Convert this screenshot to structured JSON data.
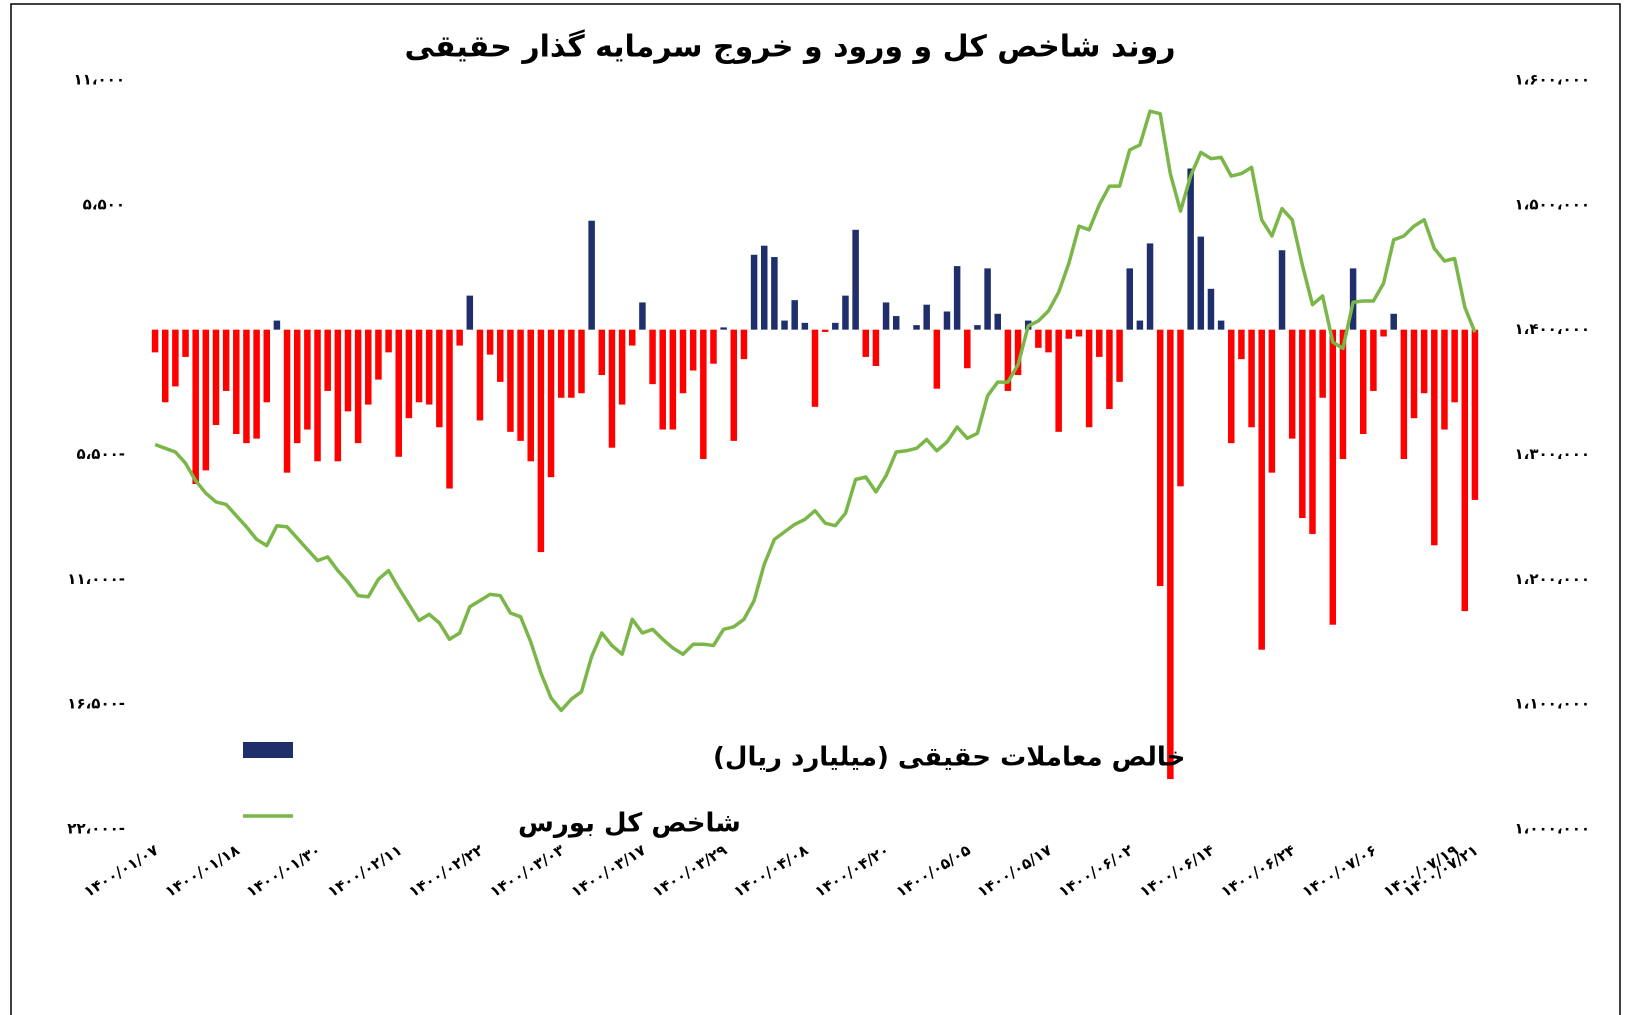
{
  "chart_data": {
    "type": "bar-line",
    "title": "روند شاخص کل و ورود و خروج سرمایه گذار حقیقی",
    "categories": [
      "۱۴۰۰/۰۱/۰۷",
      null,
      null,
      null,
      null,
      null,
      null,
      null,
      "۱۴۰۰/۰۱/۱۸",
      null,
      null,
      null,
      null,
      null,
      null,
      null,
      "۱۴۰۰/۰۱/۳۰",
      null,
      null,
      null,
      null,
      null,
      null,
      null,
      "۱۴۰۰/۰۲/۱۱",
      null,
      null,
      null,
      null,
      null,
      null,
      null,
      "۱۴۰۰/۰۲/۲۲",
      null,
      null,
      null,
      null,
      null,
      null,
      null,
      "۱۴۰۰/۰۳/۰۳",
      null,
      null,
      null,
      null,
      null,
      null,
      null,
      "۱۴۰۰/۰۳/۱۷",
      null,
      null,
      null,
      null,
      null,
      null,
      null,
      "۱۴۰۰/۰۳/۲۹",
      null,
      null,
      null,
      null,
      null,
      null,
      null,
      "۱۴۰۰/۰۴/۰۸",
      null,
      null,
      null,
      null,
      null,
      null,
      null,
      "۱۴۰۰/۰۴/۲۰",
      null,
      null,
      null,
      null,
      null,
      null,
      null,
      "۱۴۰۰/۰۵/۰۵",
      null,
      null,
      null,
      null,
      null,
      null,
      null,
      "۱۴۰۰/۰۵/۱۷",
      null,
      null,
      null,
      null,
      null,
      null,
      null,
      "۱۴۰۰/۰۶/۰۲",
      null,
      null,
      null,
      null,
      null,
      null,
      null,
      "۱۴۰۰/۰۶/۱۴",
      null,
      null,
      null,
      null,
      null,
      null,
      null,
      "۱۴۰۰/۰۶/۲۴",
      null,
      null,
      null,
      null,
      null,
      null,
      null,
      "۱۴۰۰/۰۷/۰۶",
      null,
      null,
      null,
      null,
      null,
      null,
      null,
      "۱۴۰۰/۰۷/۱۹",
      null,
      "۱۴۰۰/۰۷/۲۱"
    ],
    "series": [
      {
        "name": "خالص معاملات حقیقی (میلیارد ریال)",
        "color": "#1f2f6b",
        "negative_color": "#ff0000",
        "axis": "y",
        "values": [
          -1000,
          -3200,
          -2500,
          -1200,
          -6800,
          -6200,
          -4200,
          -2700,
          -4600,
          -5000,
          -4800,
          -3200,
          400,
          -6300,
          -5000,
          -4400,
          -5800,
          -2700,
          -5800,
          -3600,
          -5000,
          -3300,
          -2200,
          -1000,
          -5600,
          -3900,
          -3200,
          -3300,
          -4300,
          -7000,
          -700,
          1500,
          -4000,
          -1100,
          -2300,
          -4500,
          -4900,
          -5800,
          -9800,
          -6500,
          -3000,
          -3000,
          -2800,
          4800,
          -2000,
          -5200,
          -3300,
          -700,
          1200,
          -2400,
          -4400,
          -4400,
          -2800,
          -1800,
          -5700,
          -1500,
          100,
          -4900,
          -1300,
          3300,
          3700,
          3200,
          400,
          1300,
          300,
          -3400,
          -100,
          300,
          1500,
          4400,
          -1200,
          -1600,
          1200,
          600,
          0,
          200,
          1100,
          -2600,
          800,
          2800,
          -1700,
          200,
          2700,
          700,
          -2700,
          -2000,
          400,
          -800,
          -1000,
          -4500,
          -400,
          -300,
          -4300,
          -1200,
          -3500,
          -2300,
          2700,
          400,
          3800,
          -11300,
          -19800,
          -6900,
          7100,
          4100,
          1800,
          400,
          -5000,
          -1300,
          -4300,
          -14100,
          -6300,
          3500,
          -4800,
          -8300,
          -9000,
          -3000,
          -13000,
          -5700,
          2700,
          -4600,
          -2700,
          -300,
          700,
          -5700,
          -3900,
          -2800,
          -9500,
          -4400,
          -3200,
          -12400,
          -7500
        ]
      },
      {
        "name": "شاخص کل بورس",
        "color": "#7ab648",
        "axis": "y2",
        "values": [
          1308000,
          1305000,
          1302000,
          1293000,
          1279000,
          1269000,
          1262000,
          1260000,
          1251000,
          1242000,
          1232000,
          1227000,
          1243000,
          1242000,
          1233000,
          1224000,
          1215000,
          1218000,
          1207000,
          1198000,
          1187000,
          1186000,
          1200000,
          1207000,
          1193000,
          1180000,
          1167000,
          1172000,
          1165000,
          1152000,
          1157000,
          1178000,
          1183000,
          1188000,
          1187000,
          1173000,
          1170000,
          1150000,
          1125000,
          1105000,
          1095000,
          1104000,
          1110000,
          1138000,
          1157000,
          1147000,
          1140000,
          1168000,
          1157000,
          1160000,
          1152000,
          1145000,
          1140000,
          1148000,
          1148000,
          1147000,
          1160000,
          1162000,
          1168000,
          1183000,
          1212000,
          1232000,
          1238000,
          1244000,
          1248000,
          1255000,
          1245000,
          1243000,
          1253000,
          1280000,
          1282000,
          1270000,
          1283000,
          1302000,
          1303000,
          1305000,
          1312000,
          1303000,
          1310000,
          1322000,
          1313000,
          1317000,
          1347000,
          1358000,
          1358000,
          1372000,
          1403000,
          1407000,
          1415000,
          1430000,
          1453000,
          1483000,
          1480000,
          1500000,
          1515000,
          1515000,
          1544000,
          1548000,
          1575000,
          1573000,
          1525000,
          1495000,
          1523000,
          1542000,
          1537000,
          1538000,
          1523000,
          1525000,
          1530000,
          1488000,
          1475000,
          1497000,
          1488000,
          1452000,
          1420000,
          1427000,
          1390000,
          1385000,
          1422000,
          1423000,
          1423000,
          1437000,
          1472000,
          1475000,
          1483000,
          1488000,
          1465000,
          1455000,
          1457000,
          1418000,
          1398000
        ]
      }
    ],
    "ylim": [
      -22000,
      11000
    ],
    "yticks": [
      {
        "value": 11000,
        "label": "۱۱،۰۰۰"
      },
      {
        "value": 5500,
        "label": "۵،۵۰۰"
      },
      {
        "value": -5500,
        "label": "۵،۵۰۰-"
      },
      {
        "value": -11000,
        "label": "۱۱،۰۰۰-"
      },
      {
        "value": -16500,
        "label": "۱۶،۵۰۰-"
      },
      {
        "value": -22000,
        "label": "۲۲،۰۰۰-"
      }
    ],
    "y2lim": [
      1000000,
      1600000
    ],
    "y2ticks": [
      {
        "value": 1600000,
        "label": "۱،۶۰۰،۰۰۰"
      },
      {
        "value": 1500000,
        "label": "۱،۵۰۰،۰۰۰"
      },
      {
        "value": 1400000,
        "label": "۱،۴۰۰،۰۰۰"
      },
      {
        "value": 1300000,
        "label": "۱،۳۰۰،۰۰۰"
      },
      {
        "value": 1200000,
        "label": "۱،۲۰۰،۰۰۰"
      },
      {
        "value": 1100000,
        "label": "۱،۱۰۰،۰۰۰"
      },
      {
        "value": 1000000,
        "label": "۱،۰۰۰،۰۰۰"
      }
    ],
    "legend": "bottom-left",
    "grid": false
  }
}
